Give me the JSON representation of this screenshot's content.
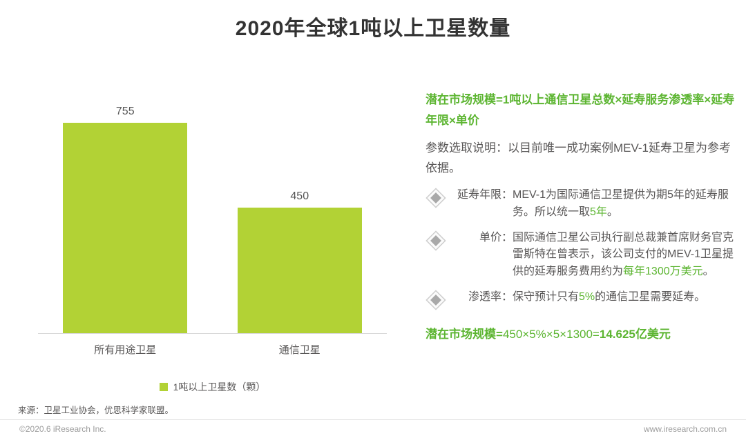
{
  "title": "2020年全球1吨以上卫星数量",
  "chart_data": {
    "type": "bar",
    "title": "2020年全球1吨以上卫星数量",
    "categories": [
      "所有用途卫星",
      "通信卫星"
    ],
    "values": [
      755,
      450
    ],
    "legend": "1吨以上卫星数（颗）",
    "bar_color": "#b2d235",
    "ylim": [
      0,
      800
    ],
    "grid": false,
    "legend_position": "bottom"
  },
  "panel": {
    "green_color": "#5cb531",
    "formula_heading": "潜在市场规模=1吨以上通信卫星总数×延寿服务渗透率×延寿年限×单价",
    "note": "参数选取说明：以目前唯一成功案例MEV-1延寿卫星为参考依据。",
    "items": [
      {
        "label": "延寿年限：",
        "segments": [
          {
            "text": "MEV-1为国际通信卫星提供为期5年的延寿服务。所以统一取",
            "green": false
          },
          {
            "text": "5年",
            "green": true
          },
          {
            "text": "。",
            "green": false
          }
        ]
      },
      {
        "label": "单价：",
        "segments": [
          {
            "text": "国际通信卫星公司执行副总裁兼首席财务官克雷斯特在曾表示，该公司支付的MEV-1卫星提供的延寿服务费用约为",
            "green": false
          },
          {
            "text": "每年1300万美元",
            "green": true
          },
          {
            "text": "。",
            "green": false
          }
        ]
      },
      {
        "label": "渗透率：",
        "segments": [
          {
            "text": "保守预计只有",
            "green": false
          },
          {
            "text": "5%",
            "green": true
          },
          {
            "text": "的通信卫星需要延寿。",
            "green": false
          }
        ]
      }
    ],
    "result": {
      "prefix": "潜在市场规模=",
      "middle": "450×5%×5×1300=",
      "value": "14.625亿美元"
    }
  },
  "source": "来源：卫星工业协会，优思科学家联盟。",
  "footer": {
    "left": "©2020.6 iResearch Inc.",
    "right": "www.iresearch.com.cn"
  }
}
